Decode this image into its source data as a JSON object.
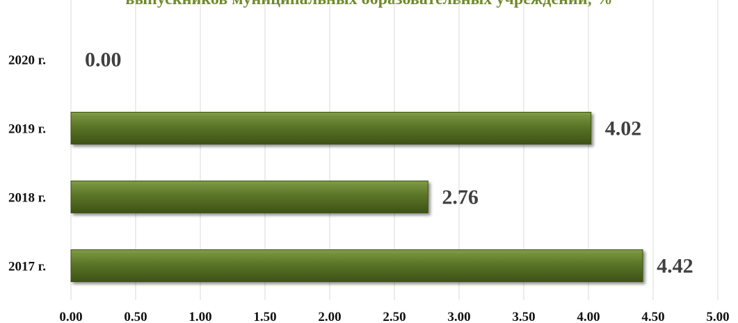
{
  "chart_data": {
    "type": "bar",
    "orientation": "horizontal",
    "title": "выпускников муниципальных образовательных учреждений, %",
    "categories": [
      "2017 г.",
      "2018 г.",
      "2019 г.",
      "2020 г."
    ],
    "values": [
      4.42,
      2.76,
      4.02,
      0.0
    ],
    "data_labels": [
      "4.42",
      "2.76",
      "4.02",
      "0.00"
    ],
    "xlim": [
      0,
      5
    ],
    "x_ticks": [
      "0.00",
      "0.50",
      "1.00",
      "1.50",
      "2.00",
      "2.50",
      "3.00",
      "3.50",
      "4.00",
      "4.50",
      "5.00"
    ],
    "grid": true,
    "legend": "none",
    "colors": {
      "bar": "#5a7527",
      "bar_highlight": "#7f9a45",
      "bar_shadow": "#3d5217",
      "grid": "#d9d9d9",
      "title": "#6f8a2e",
      "data_label": "#404040"
    }
  }
}
